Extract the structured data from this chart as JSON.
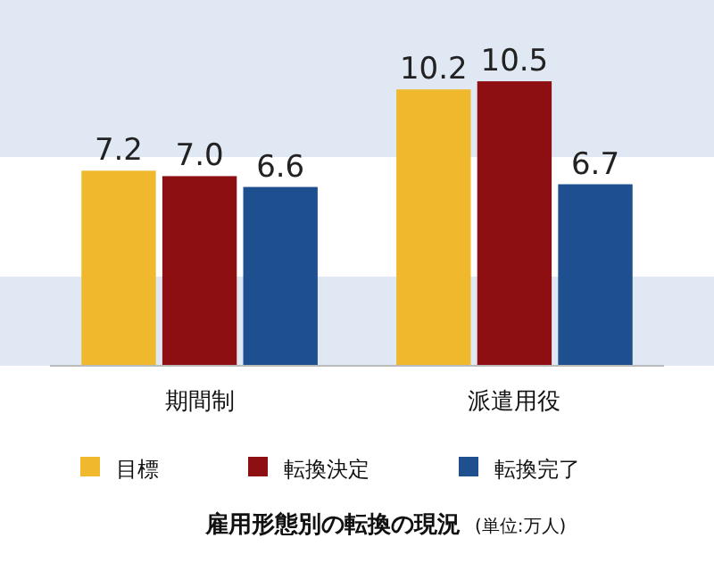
{
  "chart_data": {
    "type": "bar",
    "title": "雇用形態別の転換の現況",
    "subtitle": "(単位:万人)",
    "categories": [
      "期間制",
      "派遣用役"
    ],
    "series": [
      {
        "name": "目標",
        "color": "#f0b82d",
        "values": [
          7.2,
          10.2
        ],
        "value_labels": [
          "7.2",
          "10.2"
        ]
      },
      {
        "name": "転換決定",
        "color": "#8e0f12",
        "values": [
          7.0,
          10.5
        ],
        "value_labels": [
          "7.0",
          "10.5"
        ]
      },
      {
        "name": "転換完了",
        "color": "#1e4f8f",
        "values": [
          6.6,
          6.7
        ],
        "value_labels": [
          "6.6",
          "6.7"
        ]
      }
    ],
    "ylim": [
      0,
      13.5
    ],
    "legend": "bottom",
    "grid": false
  }
}
